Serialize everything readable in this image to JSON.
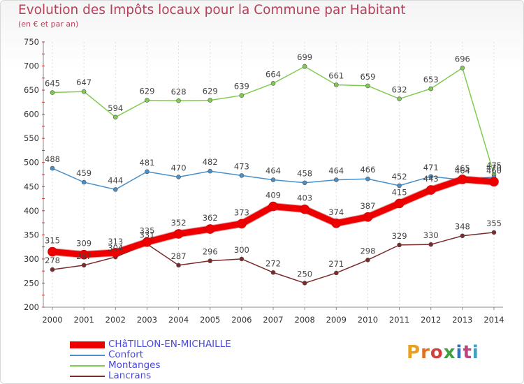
{
  "title": "Evolution des Impôts locaux pour la Commune par Habitant",
  "subtitle": "(en € et par an)",
  "logo": {
    "text": "Proxiti",
    "colors": [
      "#e8a020",
      "#e07020",
      "#d04040",
      "#40a040",
      "#3070c0",
      "#c04080",
      "#40a0c0"
    ]
  },
  "chart_data": {
    "type": "line",
    "x": [
      2000,
      2001,
      2002,
      2003,
      2004,
      2005,
      2006,
      2007,
      2008,
      2009,
      2010,
      2011,
      2012,
      2013,
      2014
    ],
    "ylim": [
      200,
      750
    ],
    "yticks": [
      200,
      250,
      300,
      350,
      400,
      450,
      500,
      550,
      600,
      650,
      700,
      750
    ],
    "grid": "vertical",
    "legend_position": "bottom-left",
    "series": [
      {
        "name": "CHâTILLON-EN-MICHAILLE",
        "color": "#ee0000",
        "width": 9,
        "values": [
          315,
          309,
          313,
          335,
          352,
          362,
          373,
          409,
          403,
          374,
          387,
          415,
          443,
          465,
          460
        ]
      },
      {
        "name": "Confort",
        "color": "#4a90c8",
        "width": 1.5,
        "values": [
          488,
          459,
          444,
          481,
          470,
          482,
          473,
          464,
          458,
          464,
          466,
          452,
          471,
          464,
          470
        ]
      },
      {
        "name": "Montanges",
        "color": "#80cc50",
        "width": 1.5,
        "values": [
          645,
          647,
          594,
          629,
          628,
          629,
          639,
          664,
          699,
          661,
          659,
          632,
          653,
          696,
          475
        ]
      },
      {
        "name": "Lancrans",
        "color": "#7a2a2a",
        "width": 1.5,
        "values": [
          278,
          287,
          304,
          331,
          287,
          296,
          300,
          272,
          250,
          271,
          298,
          329,
          330,
          348,
          355
        ]
      }
    ]
  }
}
